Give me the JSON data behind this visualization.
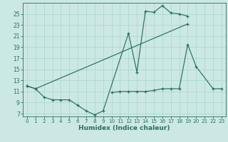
{
  "xlabel": "Humidex (Indice chaleur)",
  "bg_color": "#cce8e4",
  "line_color": "#2a6e62",
  "grid_color": "#a8d4d0",
  "xlim": [
    -0.5,
    23.5
  ],
  "ylim": [
    6.5,
    27.0
  ],
  "xticks": [
    0,
    1,
    2,
    3,
    4,
    5,
    6,
    7,
    8,
    9,
    10,
    11,
    12,
    13,
    14,
    15,
    16,
    17,
    18,
    19,
    20,
    21,
    22,
    23
  ],
  "yticks": [
    7,
    9,
    11,
    13,
    15,
    17,
    19,
    21,
    23,
    25
  ],
  "series1_x": [
    0,
    1,
    2,
    3,
    4,
    5,
    6,
    7,
    8,
    9,
    12,
    13,
    14,
    15,
    16,
    17,
    18,
    19
  ],
  "series1_y": [
    12.0,
    11.5,
    10.0,
    9.5,
    9.5,
    9.5,
    8.5,
    7.5,
    6.8,
    7.5,
    21.5,
    14.5,
    25.5,
    25.3,
    26.5,
    25.2,
    25.0,
    24.6
  ],
  "series2_x": [
    0,
    1,
    19
  ],
  "series2_y": [
    12.0,
    11.5,
    23.2
  ],
  "series3_x": [
    10,
    11,
    12,
    13,
    14,
    15,
    16,
    17,
    18,
    19,
    20,
    22,
    23
  ],
  "series3_y": [
    10.8,
    11.0,
    11.0,
    11.0,
    11.0,
    11.2,
    11.5,
    11.5,
    11.5,
    19.5,
    15.5,
    11.5,
    11.5
  ]
}
